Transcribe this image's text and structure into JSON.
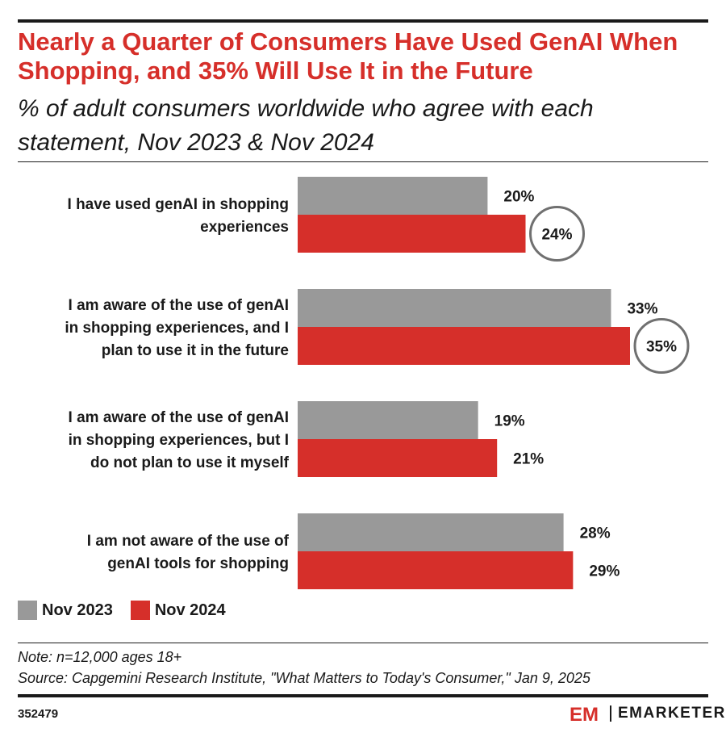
{
  "header": {
    "title": "Nearly a Quarter of Consumers Have Used GenAI When Shopping, and 35% Will Use It in the Future",
    "subtitle": "% of adult consumers worldwide who agree with each statement, Nov 2023 & Nov 2024"
  },
  "chart_data": {
    "type": "bar",
    "orientation": "horizontal",
    "title": "Nearly a Quarter of Consumers Have Used GenAI When Shopping, and 35% Will Use It in the Future",
    "subtitle": "% of adult consumers worldwide who agree with each statement, Nov 2023 & Nov 2024",
    "categories": [
      [
        "I have used genAI in shopping",
        "experiences"
      ],
      [
        "I am aware of the use of genAI",
        "in shopping experiences, and I",
        "plan to use it in the future"
      ],
      [
        "I am aware of the use of genAI",
        "in shopping experiences, but I",
        "do not plan to use it myself"
      ],
      [
        "I am not aware of the use of",
        "genAI tools for shopping"
      ]
    ],
    "series": [
      {
        "name": "Nov 2023",
        "color": "#999999",
        "values": [
          20,
          33,
          19,
          28
        ],
        "labels": [
          "20%",
          "33%",
          "19%",
          "28%"
        ]
      },
      {
        "name": "Nov 2024",
        "color": "#d62f2a",
        "values": [
          24,
          35,
          21,
          29
        ],
        "labels": [
          "24%",
          "35%",
          "21%",
          "29%"
        ]
      }
    ],
    "highlighted": [
      {
        "series": 1,
        "index": 0
      },
      {
        "series": 1,
        "index": 1
      }
    ],
    "xlim": [
      0,
      35
    ],
    "legend": "bottom-left",
    "grid": false
  },
  "legend": [
    {
      "label": "Nov 2023",
      "color": "#999999"
    },
    {
      "label": "Nov 2024",
      "color": "#d62f2a"
    }
  ],
  "footer": {
    "note": "Note: n=12,000 ages 18+",
    "source": "Source: Capgemini Research Institute, \"What Matters to Today's Consumer,\" Jan 9, 2025",
    "chart_id": "352479",
    "brand": "EMARKETER",
    "logo_mark": "EM"
  },
  "colors": {
    "accent": "#d62f2a",
    "gray": "#999999",
    "text": "#1a1a1a"
  }
}
